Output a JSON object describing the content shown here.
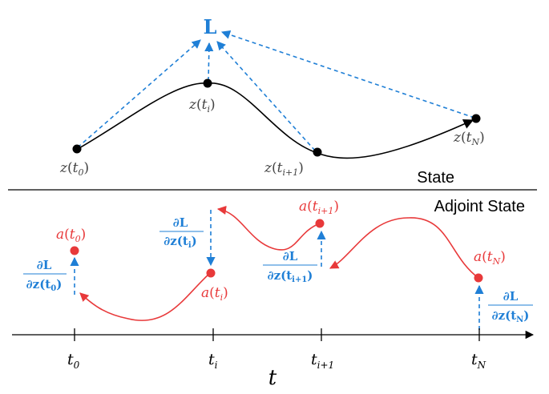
{
  "loss_label": "L",
  "section_labels": {
    "state": "State",
    "adjoint": "Adjoint State"
  },
  "state_points": [
    {
      "id": "t0",
      "sym": "z",
      "sub": "0"
    },
    {
      "id": "ti",
      "sym": "z",
      "sub": "i"
    },
    {
      "id": "ti1",
      "sym": "z",
      "sub": "i+1"
    },
    {
      "id": "tN",
      "sym": "z",
      "sub": "N"
    }
  ],
  "adjoint_points": [
    {
      "id": "t0",
      "sym": "a",
      "sub": "0"
    },
    {
      "id": "ti",
      "sym": "a",
      "sub": "i"
    },
    {
      "id": "ti1",
      "sym": "a",
      "sub": "i+1"
    },
    {
      "id": "tN",
      "sym": "a",
      "sub": "N"
    }
  ],
  "gradient_labels": [
    {
      "id": "t0",
      "num": "∂L",
      "den": "∂z(t",
      "sub": "0"
    },
    {
      "id": "ti",
      "num": "∂L",
      "den": "∂z(t",
      "sub": "i"
    },
    {
      "id": "ti1",
      "num": "∂L",
      "den": "∂z(t",
      "sub": "i+1"
    },
    {
      "id": "tN",
      "num": "∂L",
      "den": "∂z(t",
      "sub": "N"
    }
  ],
  "time_axis": {
    "label": "t",
    "ticks": [
      {
        "sym": "t",
        "sub": "0"
      },
      {
        "sym": "t",
        "sub": "i"
      },
      {
        "sym": "t",
        "sub": "i+1"
      },
      {
        "sym": "t",
        "sub": "N"
      }
    ]
  },
  "colors": {
    "state_curve": "#000000",
    "adjoint": "#e8393a",
    "gradient": "#1f7fd6",
    "text": "#222222"
  }
}
